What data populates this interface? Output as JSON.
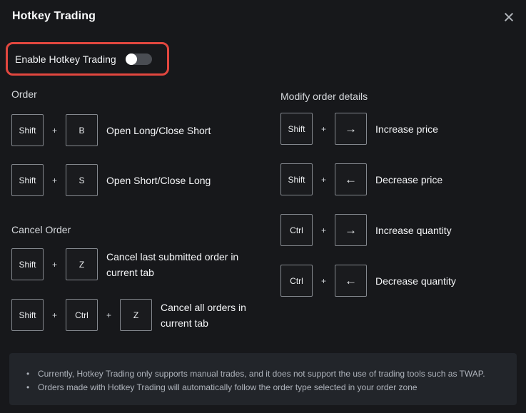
{
  "dialog": {
    "title": "Hotkey Trading"
  },
  "icons": {
    "close": "×"
  },
  "ui": {
    "plus": "+"
  },
  "enable": {
    "label": "Enable Hotkey Trading",
    "enabled": false
  },
  "sections": {
    "order": {
      "heading": "Order",
      "rows": [
        {
          "keys": [
            "Shift",
            "B"
          ],
          "label": "Open Long/Close Short"
        },
        {
          "keys": [
            "Shift",
            "S"
          ],
          "label": "Open Short/Close Long"
        }
      ]
    },
    "cancel": {
      "heading": "Cancel Order",
      "rows": [
        {
          "keys": [
            "Shift",
            "Z"
          ],
          "label": "Cancel last submitted order in current tab"
        },
        {
          "keys": [
            "Shift",
            "Ctrl",
            "Z"
          ],
          "label": "Cancel all orders in current tab"
        }
      ]
    },
    "modify": {
      "heading": "Modify order details",
      "rows": [
        {
          "keys": [
            "Shift",
            "→"
          ],
          "label": "Increase price"
        },
        {
          "keys": [
            "Shift",
            "←"
          ],
          "label": "Decrease price"
        },
        {
          "keys": [
            "Ctrl",
            "→"
          ],
          "label": "Increase quantity"
        },
        {
          "keys": [
            "Ctrl",
            "←"
          ],
          "label": "Decrease quantity"
        }
      ]
    }
  },
  "notes": [
    "Currently, Hotkey Trading only supports manual trades, and it does not support the use of trading tools such as TWAP.",
    "Orders made with Hotkey Trading will automatically follow the order type selected in your order zone"
  ],
  "colors": {
    "background": "#17181b",
    "notes_panel": "#22252a",
    "highlight_red": "#e2473f",
    "keycap_border": "#84888e",
    "toggle_track": "#4a4d53"
  }
}
